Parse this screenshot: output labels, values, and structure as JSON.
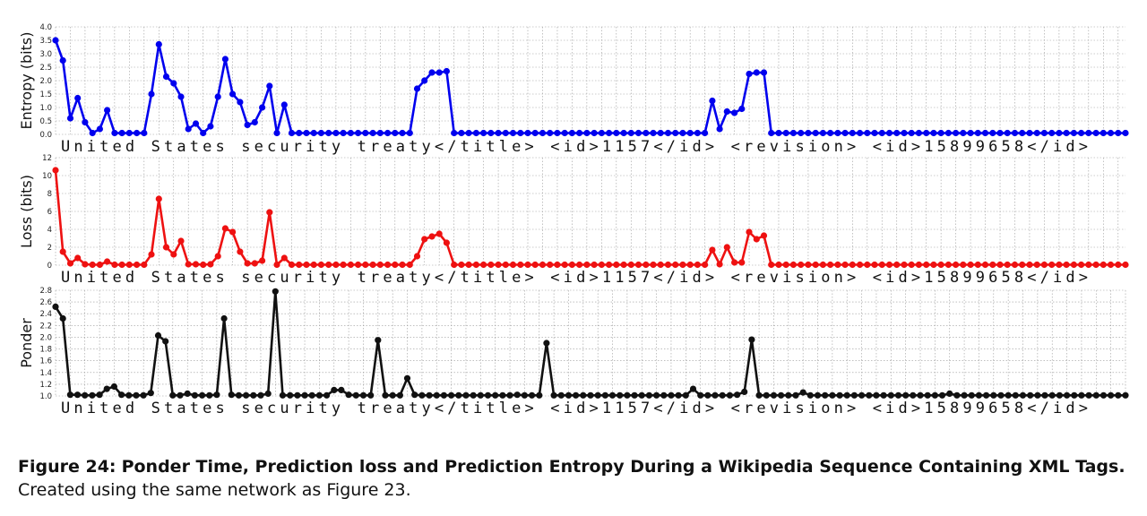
{
  "caption": {
    "label": "Figure 24:",
    "title": "Ponder Time, Prediction loss and Prediction Entropy During a Wikipedia Sequence Containing XML Tags.",
    "note": "Created using the same network as Figure 23."
  },
  "sequence_text": "United States security treaty</title>    <id>1157</id>    <revision>    <id>15899658</id>",
  "colors": {
    "entropy": "#0000ee",
    "loss": "#ee1111",
    "ponder": "#111111",
    "grid": "#9a9a9a"
  },
  "chart_data": [
    {
      "type": "line",
      "ylabel": "Entropy (bits)",
      "ylim": [
        0,
        4.0
      ],
      "yticks": [
        "0.0",
        "0.5",
        "1.0",
        "1.5",
        "2.0",
        "2.5",
        "3.0",
        "3.5",
        "4.0"
      ],
      "grid": true,
      "series": [
        {
          "values": [
            3.5,
            2.75,
            0.6,
            1.35,
            0.45,
            0.05,
            0.2,
            0.9,
            0.05,
            0.05,
            0.05,
            0.05,
            0.05,
            1.5,
            3.35,
            2.15,
            1.9,
            1.4,
            0.2,
            0.4,
            0.05,
            0.3,
            1.4,
            2.8,
            1.5,
            1.2,
            0.35,
            0.45,
            1.0,
            1.8,
            0.05,
            1.1,
            0.05,
            0.05,
            0.05,
            0.05,
            0.05,
            0.05,
            0.05,
            0.05,
            0.05,
            0.05,
            0.05,
            0.05,
            0.05,
            0.05,
            0.05,
            0.05,
            0.05,
            1.7,
            2.0,
            2.3,
            2.3,
            2.35,
            0.05,
            0.05,
            0.05,
            0.05,
            0.05,
            0.05,
            0.05,
            0.05,
            0.05,
            0.05,
            0.05,
            0.05,
            0.05,
            0.05,
            0.05,
            0.05,
            0.05,
            0.05,
            0.05,
            0.05,
            0.05,
            0.05,
            0.05,
            0.05,
            0.05,
            0.05,
            0.05,
            0.05,
            0.05,
            0.05,
            0.05,
            0.05,
            0.05,
            0.05,
            0.05,
            1.25,
            0.2,
            0.85,
            0.8,
            0.95,
            2.25,
            2.3,
            2.3,
            0.05,
            0.05,
            0.05,
            0.05,
            0.05,
            0.05,
            0.05,
            0.05,
            0.05,
            0.05,
            0.05,
            0.05,
            0.05,
            0.05,
            0.05,
            0.05,
            0.05,
            0.05,
            0.05,
            0.05,
            0.05,
            0.05,
            0.05,
            0.05,
            0.05,
            0.05,
            0.05,
            0.05,
            0.05,
            0.05,
            0.05,
            0.05,
            0.05,
            0.05,
            0.05,
            0.05,
            0.05,
            0.05,
            0.05,
            0.05,
            0.05,
            0.05,
            0.05,
            0.05,
            0.05,
            0.05,
            0.05,
            0.05,
            0.05
          ]
        }
      ]
    },
    {
      "type": "line",
      "ylabel": "Loss (bits)",
      "ylim": [
        0,
        12
      ],
      "yticks": [
        "0",
        "2",
        "4",
        "6",
        "8",
        "10",
        "12"
      ],
      "grid": true,
      "series": [
        {
          "values": [
            10.6,
            1.5,
            0.2,
            0.8,
            0.1,
            0.05,
            0.05,
            0.4,
            0.05,
            0.05,
            0.05,
            0.05,
            0.05,
            1.2,
            7.4,
            2.0,
            1.2,
            2.7,
            0.1,
            0.1,
            0.05,
            0.1,
            1.0,
            4.1,
            3.7,
            1.5,
            0.2,
            0.2,
            0.5,
            5.9,
            0.05,
            0.8,
            0.05,
            0.05,
            0.05,
            0.05,
            0.05,
            0.05,
            0.05,
            0.05,
            0.05,
            0.05,
            0.05,
            0.05,
            0.05,
            0.05,
            0.05,
            0.05,
            0.05,
            1.0,
            2.9,
            3.2,
            3.5,
            2.5,
            0.05,
            0.05,
            0.05,
            0.05,
            0.05,
            0.05,
            0.05,
            0.05,
            0.05,
            0.05,
            0.05,
            0.05,
            0.05,
            0.05,
            0.05,
            0.05,
            0.05,
            0.05,
            0.05,
            0.05,
            0.05,
            0.05,
            0.05,
            0.05,
            0.05,
            0.05,
            0.05,
            0.05,
            0.05,
            0.05,
            0.05,
            0.05,
            0.05,
            0.05,
            0.05,
            1.7,
            0.1,
            2.0,
            0.3,
            0.3,
            3.7,
            2.9,
            3.3,
            0.05,
            0.05,
            0.05,
            0.05,
            0.05,
            0.05,
            0.05,
            0.05,
            0.05,
            0.05,
            0.05,
            0.05,
            0.05,
            0.05,
            0.05,
            0.05,
            0.05,
            0.05,
            0.05,
            0.05,
            0.05,
            0.05,
            0.05,
            0.05,
            0.05,
            0.05,
            0.05,
            0.05,
            0.05,
            0.05,
            0.05,
            0.05,
            0.05,
            0.05,
            0.05,
            0.05,
            0.05,
            0.05,
            0.05,
            0.05,
            0.05,
            0.05,
            0.05,
            0.05,
            0.05,
            0.05,
            0.05,
            0.05,
            0.05
          ]
        }
      ]
    },
    {
      "type": "line",
      "ylabel": "Ponder",
      "ylim": [
        1.0,
        2.8
      ],
      "yticks": [
        "1.0",
        "1.2",
        "1.4",
        "1.6",
        "1.8",
        "2.0",
        "2.2",
        "2.4",
        "2.6",
        "2.8"
      ],
      "grid": true,
      "series": [
        {
          "values": [
            2.52,
            2.32,
            1.02,
            1.02,
            1.01,
            1.01,
            1.02,
            1.12,
            1.16,
            1.02,
            1.01,
            1.01,
            1.01,
            1.05,
            2.03,
            1.93,
            1.01,
            1.01,
            1.04,
            1.01,
            1.01,
            1.01,
            1.02,
            2.32,
            1.02,
            1.01,
            1.01,
            1.01,
            1.01,
            1.04,
            2.78,
            1.01,
            1.01,
            1.01,
            1.01,
            1.01,
            1.01,
            1.01,
            1.1,
            1.1,
            1.02,
            1.01,
            1.01,
            1.01,
            1.95,
            1.01,
            1.01,
            1.01,
            1.3,
            1.02,
            1.01,
            1.01,
            1.01,
            1.01,
            1.01,
            1.01,
            1.01,
            1.01,
            1.01,
            1.01,
            1.01,
            1.01,
            1.01,
            1.02,
            1.01,
            1.01,
            1.01,
            1.9,
            1.01,
            1.01,
            1.01,
            1.01,
            1.01,
            1.01,
            1.01,
            1.01,
            1.01,
            1.01,
            1.01,
            1.01,
            1.01,
            1.01,
            1.01,
            1.01,
            1.01,
            1.01,
            1.01,
            1.12,
            1.01,
            1.01,
            1.01,
            1.01,
            1.01,
            1.02,
            1.07,
            1.96,
            1.01,
            1.01,
            1.01,
            1.01,
            1.01,
            1.01,
            1.06,
            1.01,
            1.01,
            1.01,
            1.01,
            1.01,
            1.01,
            1.01,
            1.01,
            1.01,
            1.01,
            1.01,
            1.01,
            1.01,
            1.01,
            1.01,
            1.01,
            1.01,
            1.01,
            1.01,
            1.04,
            1.01,
            1.01,
            1.01,
            1.01,
            1.01,
            1.01,
            1.01,
            1.01,
            1.01,
            1.01,
            1.01,
            1.01,
            1.01,
            1.01,
            1.01,
            1.01,
            1.01,
            1.01,
            1.01,
            1.01,
            1.01,
            1.01,
            1.01,
            1.01
          ]
        }
      ]
    }
  ]
}
